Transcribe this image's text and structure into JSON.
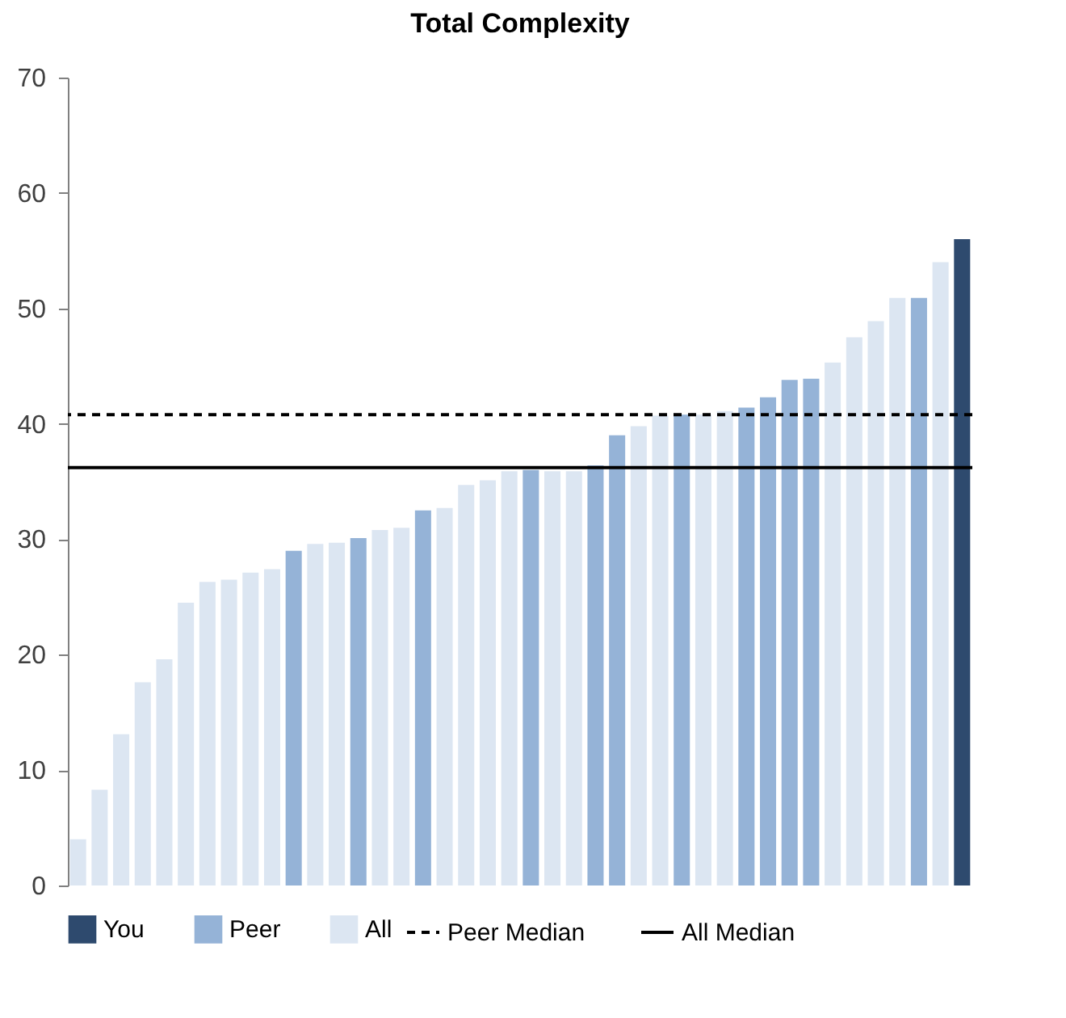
{
  "chart_data": {
    "type": "bar",
    "title": "Total Complexity",
    "categories": [
      null,
      null,
      null,
      null,
      null,
      null,
      null,
      null,
      null,
      null,
      null,
      null,
      null,
      null,
      null,
      null,
      null,
      null,
      null,
      null,
      null,
      null,
      null,
      null,
      null,
      null,
      null,
      null,
      null,
      null,
      null,
      null,
      null,
      null,
      null,
      null,
      null,
      null,
      null,
      null,
      null,
      null
    ],
    "series": [
      {
        "name": "You",
        "color": "#2e4a6e",
        "values": [
          null,
          null,
          null,
          null,
          null,
          null,
          null,
          null,
          null,
          null,
          null,
          null,
          null,
          null,
          null,
          null,
          null,
          null,
          null,
          null,
          null,
          null,
          null,
          null,
          null,
          null,
          null,
          null,
          null,
          null,
          null,
          null,
          null,
          null,
          null,
          null,
          null,
          null,
          null,
          null,
          null,
          56.0
        ]
      },
      {
        "name": "Peer",
        "color": "#95b3d7",
        "values": [
          null,
          null,
          null,
          null,
          null,
          null,
          null,
          null,
          null,
          null,
          29.0,
          null,
          null,
          30.1,
          null,
          null,
          32.5,
          null,
          null,
          null,
          null,
          36.0,
          null,
          null,
          36.4,
          39.0,
          null,
          null,
          40.8,
          null,
          null,
          41.4,
          42.3,
          43.8,
          43.9,
          null,
          null,
          null,
          null,
          50.9,
          null,
          null
        ]
      },
      {
        "name": "All",
        "color": "#dce6f2",
        "values": [
          4.0,
          8.3,
          13.1,
          17.6,
          19.6,
          24.5,
          26.3,
          26.5,
          27.1,
          27.4,
          null,
          29.6,
          29.7,
          null,
          30.8,
          31.0,
          null,
          32.7,
          34.7,
          35.1,
          35.9,
          null,
          35.9,
          35.9,
          null,
          null,
          39.8,
          40.7,
          null,
          40.8,
          41.1,
          null,
          null,
          null,
          null,
          45.3,
          47.5,
          48.9,
          50.9,
          null,
          54.0,
          null
        ]
      }
    ],
    "ylim": [
      0,
      70
    ],
    "yticks": [
      0,
      10,
      20,
      30,
      40,
      50,
      60,
      70
    ],
    "ref_lines": [
      {
        "axis": "y",
        "value": 40.8,
        "label": "Peer Median",
        "color": "#000000",
        "line_style": "dashed"
      },
      {
        "axis": "y",
        "value": 36.2,
        "label": "All Median",
        "color": "#000000",
        "line_style": "solid"
      }
    ],
    "legend": "bottom",
    "tick_labels": "y",
    "grid": false
  }
}
